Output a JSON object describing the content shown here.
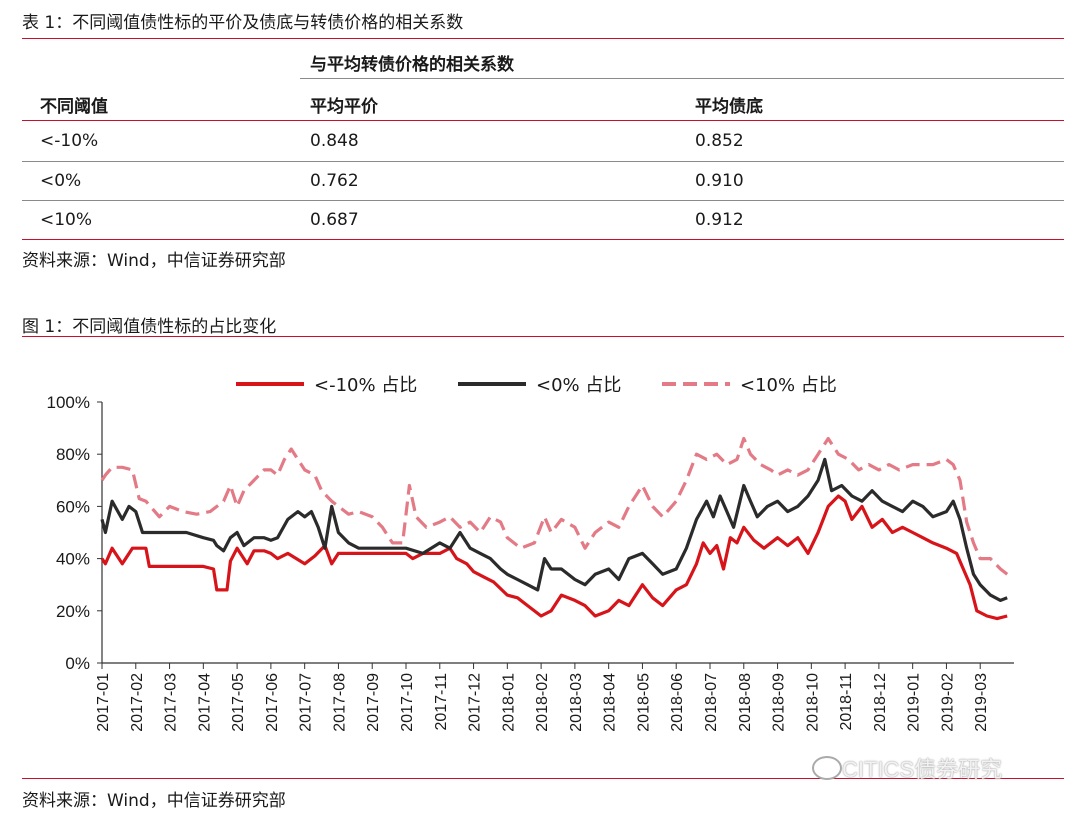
{
  "table": {
    "caption": "表 1：不同阈值债性标的平价及债底与转债价格的相关系数",
    "group_header": "与平均转债价格的相关系数",
    "headers": [
      "不同阈值",
      "平均平价",
      "平均债底"
    ],
    "rows": [
      [
        "<-10%",
        "0.848",
        "0.852"
      ],
      [
        "<0%",
        "0.762",
        "0.910"
      ],
      [
        "<10%",
        "0.687",
        "0.912"
      ]
    ],
    "source": "资料来源：Wind，中信证券研究部"
  },
  "figure": {
    "caption": "图 1：不同阈值债性标的占比变化",
    "source": "资料来源：Wind，中信证券研究部",
    "watermark": "CITICS债券研究"
  },
  "chart_data": {
    "type": "line",
    "ylim": [
      0,
      100
    ],
    "yticks": [
      "0%",
      "20%",
      "40%",
      "60%",
      "80%",
      "100%"
    ],
    "xticks": [
      "2017-01",
      "2017-02",
      "2017-03",
      "2017-04",
      "2017-05",
      "2017-06",
      "2017-07",
      "2017-08",
      "2017-09",
      "2017-10",
      "2017-11",
      "2017-12",
      "2018-01",
      "2018-02",
      "2018-03",
      "2018-04",
      "2018-05",
      "2018-06",
      "2018-07",
      "2018-08",
      "2018-09",
      "2018-10",
      "2018-11",
      "2018-12",
      "2019-01",
      "2019-02",
      "2019-03"
    ],
    "legend_position": "top",
    "series": [
      {
        "name": "<-10% 占比",
        "color": "#d7141a",
        "style": "solid",
        "points": [
          [
            0,
            40
          ],
          [
            0.1,
            38
          ],
          [
            0.3,
            44
          ],
          [
            0.6,
            38
          ],
          [
            0.9,
            44
          ],
          [
            1.3,
            44
          ],
          [
            1.4,
            37
          ],
          [
            2.0,
            37
          ],
          [
            2.5,
            37
          ],
          [
            3.0,
            37
          ],
          [
            3.3,
            36
          ],
          [
            3.4,
            28
          ],
          [
            3.7,
            28
          ],
          [
            3.8,
            39
          ],
          [
            4.0,
            44
          ],
          [
            4.3,
            38
          ],
          [
            4.5,
            43
          ],
          [
            4.8,
            43
          ],
          [
            5.0,
            42
          ],
          [
            5.2,
            40
          ],
          [
            5.5,
            42
          ],
          [
            6.0,
            38
          ],
          [
            6.3,
            41
          ],
          [
            6.6,
            45
          ],
          [
            6.8,
            38
          ],
          [
            7.0,
            42
          ],
          [
            7.5,
            42
          ],
          [
            8.0,
            42
          ],
          [
            8.5,
            42
          ],
          [
            9.0,
            42
          ],
          [
            9.2,
            40
          ],
          [
            9.5,
            42
          ],
          [
            10.0,
            42
          ],
          [
            10.3,
            44
          ],
          [
            10.5,
            40
          ],
          [
            10.8,
            38
          ],
          [
            11.0,
            35
          ],
          [
            11.3,
            33
          ],
          [
            11.6,
            31
          ],
          [
            12.0,
            26
          ],
          [
            12.3,
            25
          ],
          [
            12.6,
            22
          ],
          [
            13.0,
            18
          ],
          [
            13.3,
            20
          ],
          [
            13.6,
            26
          ],
          [
            14.0,
            24
          ],
          [
            14.3,
            22
          ],
          [
            14.6,
            18
          ],
          [
            15.0,
            20
          ],
          [
            15.3,
            24
          ],
          [
            15.6,
            22
          ],
          [
            16.0,
            30
          ],
          [
            16.3,
            25
          ],
          [
            16.6,
            22
          ],
          [
            17.0,
            28
          ],
          [
            17.3,
            30
          ],
          [
            17.6,
            38
          ],
          [
            17.8,
            46
          ],
          [
            18.0,
            42
          ],
          [
            18.2,
            45
          ],
          [
            18.4,
            36
          ],
          [
            18.6,
            48
          ],
          [
            18.8,
            46
          ],
          [
            19.0,
            52
          ],
          [
            19.3,
            47
          ],
          [
            19.6,
            44
          ],
          [
            20.0,
            48
          ],
          [
            20.3,
            45
          ],
          [
            20.6,
            48
          ],
          [
            20.9,
            42
          ],
          [
            21.2,
            50
          ],
          [
            21.5,
            60
          ],
          [
            21.8,
            64
          ],
          [
            22.0,
            62
          ],
          [
            22.2,
            55
          ],
          [
            22.5,
            60
          ],
          [
            22.8,
            52
          ],
          [
            23.1,
            55
          ],
          [
            23.4,
            50
          ],
          [
            23.7,
            52
          ],
          [
            24.0,
            50
          ],
          [
            24.3,
            48
          ],
          [
            24.6,
            46
          ],
          [
            25.0,
            44
          ],
          [
            25.3,
            42
          ],
          [
            25.5,
            36
          ],
          [
            25.7,
            30
          ],
          [
            25.9,
            20
          ],
          [
            26.2,
            18
          ],
          [
            26.5,
            17
          ],
          [
            26.8,
            18
          ]
        ]
      },
      {
        "name": "<0% 占比",
        "color": "#2b2b2b",
        "style": "solid",
        "points": [
          [
            0,
            55
          ],
          [
            0.1,
            50
          ],
          [
            0.3,
            62
          ],
          [
            0.6,
            55
          ],
          [
            0.8,
            60
          ],
          [
            1.0,
            58
          ],
          [
            1.2,
            50
          ],
          [
            1.6,
            50
          ],
          [
            2.0,
            50
          ],
          [
            2.5,
            50
          ],
          [
            3.0,
            48
          ],
          [
            3.3,
            47
          ],
          [
            3.4,
            45
          ],
          [
            3.6,
            43
          ],
          [
            3.8,
            48
          ],
          [
            4.0,
            50
          ],
          [
            4.2,
            45
          ],
          [
            4.5,
            48
          ],
          [
            4.8,
            48
          ],
          [
            5.0,
            47
          ],
          [
            5.2,
            48
          ],
          [
            5.5,
            55
          ],
          [
            5.8,
            58
          ],
          [
            6.0,
            56
          ],
          [
            6.2,
            58
          ],
          [
            6.4,
            52
          ],
          [
            6.6,
            44
          ],
          [
            6.8,
            60
          ],
          [
            7.0,
            50
          ],
          [
            7.3,
            46
          ],
          [
            7.6,
            44
          ],
          [
            8.0,
            44
          ],
          [
            8.5,
            44
          ],
          [
            9.0,
            44
          ],
          [
            9.5,
            42
          ],
          [
            10.0,
            46
          ],
          [
            10.3,
            44
          ],
          [
            10.6,
            50
          ],
          [
            10.9,
            44
          ],
          [
            11.2,
            42
          ],
          [
            11.5,
            40
          ],
          [
            11.8,
            36
          ],
          [
            12.0,
            34
          ],
          [
            12.3,
            32
          ],
          [
            12.6,
            30
          ],
          [
            12.9,
            28
          ],
          [
            13.1,
            40
          ],
          [
            13.3,
            36
          ],
          [
            13.6,
            36
          ],
          [
            14.0,
            32
          ],
          [
            14.3,
            30
          ],
          [
            14.6,
            34
          ],
          [
            15.0,
            36
          ],
          [
            15.3,
            32
          ],
          [
            15.6,
            40
          ],
          [
            16.0,
            42
          ],
          [
            16.3,
            38
          ],
          [
            16.6,
            34
          ],
          [
            17.0,
            36
          ],
          [
            17.3,
            44
          ],
          [
            17.6,
            55
          ],
          [
            17.9,
            62
          ],
          [
            18.1,
            56
          ],
          [
            18.3,
            64
          ],
          [
            18.5,
            58
          ],
          [
            18.7,
            52
          ],
          [
            19.0,
            68
          ],
          [
            19.2,
            62
          ],
          [
            19.4,
            56
          ],
          [
            19.7,
            60
          ],
          [
            20.0,
            62
          ],
          [
            20.3,
            58
          ],
          [
            20.6,
            60
          ],
          [
            20.9,
            64
          ],
          [
            21.2,
            70
          ],
          [
            21.4,
            78
          ],
          [
            21.6,
            66
          ],
          [
            21.9,
            68
          ],
          [
            22.2,
            64
          ],
          [
            22.5,
            62
          ],
          [
            22.8,
            66
          ],
          [
            23.1,
            62
          ],
          [
            23.4,
            60
          ],
          [
            23.7,
            58
          ],
          [
            24.0,
            62
          ],
          [
            24.3,
            60
          ],
          [
            24.6,
            56
          ],
          [
            25.0,
            58
          ],
          [
            25.2,
            62
          ],
          [
            25.4,
            55
          ],
          [
            25.6,
            44
          ],
          [
            25.8,
            34
          ],
          [
            26.0,
            30
          ],
          [
            26.3,
            26
          ],
          [
            26.6,
            24
          ],
          [
            26.8,
            25
          ]
        ]
      },
      {
        "name": "<10% 占比",
        "color": "#e37a86",
        "style": "dashed",
        "points": [
          [
            0,
            70
          ],
          [
            0.1,
            72
          ],
          [
            0.3,
            75
          ],
          [
            0.6,
            75
          ],
          [
            0.9,
            74
          ],
          [
            1.1,
            63
          ],
          [
            1.3,
            62
          ],
          [
            1.7,
            56
          ],
          [
            2.0,
            60
          ],
          [
            2.4,
            58
          ],
          [
            2.8,
            57
          ],
          [
            3.2,
            58
          ],
          [
            3.6,
            62
          ],
          [
            3.8,
            68
          ],
          [
            4.0,
            60
          ],
          [
            4.2,
            66
          ],
          [
            4.5,
            70
          ],
          [
            4.8,
            74
          ],
          [
            5.0,
            74
          ],
          [
            5.2,
            72
          ],
          [
            5.4,
            78
          ],
          [
            5.6,
            82
          ],
          [
            5.8,
            78
          ],
          [
            6.0,
            74
          ],
          [
            6.3,
            72
          ],
          [
            6.5,
            66
          ],
          [
            6.8,
            62
          ],
          [
            7.0,
            60
          ],
          [
            7.3,
            57
          ],
          [
            7.6,
            58
          ],
          [
            8.0,
            56
          ],
          [
            8.3,
            52
          ],
          [
            8.6,
            46
          ],
          [
            8.9,
            46
          ],
          [
            9.1,
            68
          ],
          [
            9.3,
            56
          ],
          [
            9.6,
            52
          ],
          [
            10.0,
            54
          ],
          [
            10.3,
            56
          ],
          [
            10.6,
            52
          ],
          [
            10.9,
            54
          ],
          [
            11.2,
            50
          ],
          [
            11.5,
            56
          ],
          [
            11.8,
            54
          ],
          [
            12.0,
            48
          ],
          [
            12.4,
            44
          ],
          [
            12.8,
            46
          ],
          [
            13.1,
            56
          ],
          [
            13.3,
            50
          ],
          [
            13.6,
            55
          ],
          [
            14.0,
            52
          ],
          [
            14.3,
            44
          ],
          [
            14.6,
            50
          ],
          [
            15.0,
            54
          ],
          [
            15.3,
            52
          ],
          [
            15.6,
            60
          ],
          [
            16.0,
            68
          ],
          [
            16.3,
            60
          ],
          [
            16.6,
            56
          ],
          [
            17.0,
            62
          ],
          [
            17.3,
            70
          ],
          [
            17.6,
            80
          ],
          [
            17.9,
            78
          ],
          [
            18.2,
            80
          ],
          [
            18.5,
            76
          ],
          [
            18.8,
            78
          ],
          [
            19.0,
            86
          ],
          [
            19.2,
            80
          ],
          [
            19.5,
            76
          ],
          [
            19.8,
            74
          ],
          [
            20.0,
            72
          ],
          [
            20.3,
            74
          ],
          [
            20.6,
            72
          ],
          [
            20.9,
            74
          ],
          [
            21.2,
            80
          ],
          [
            21.5,
            86
          ],
          [
            21.8,
            80
          ],
          [
            22.1,
            78
          ],
          [
            22.4,
            74
          ],
          [
            22.7,
            76
          ],
          [
            23.0,
            74
          ],
          [
            23.3,
            76
          ],
          [
            23.6,
            74
          ],
          [
            24.0,
            76
          ],
          [
            24.3,
            76
          ],
          [
            24.6,
            76
          ],
          [
            25.0,
            78
          ],
          [
            25.2,
            76
          ],
          [
            25.4,
            70
          ],
          [
            25.6,
            54
          ],
          [
            25.8,
            46
          ],
          [
            26.0,
            40
          ],
          [
            26.3,
            40
          ],
          [
            26.6,
            36
          ],
          [
            26.8,
            34
          ]
        ]
      }
    ]
  }
}
